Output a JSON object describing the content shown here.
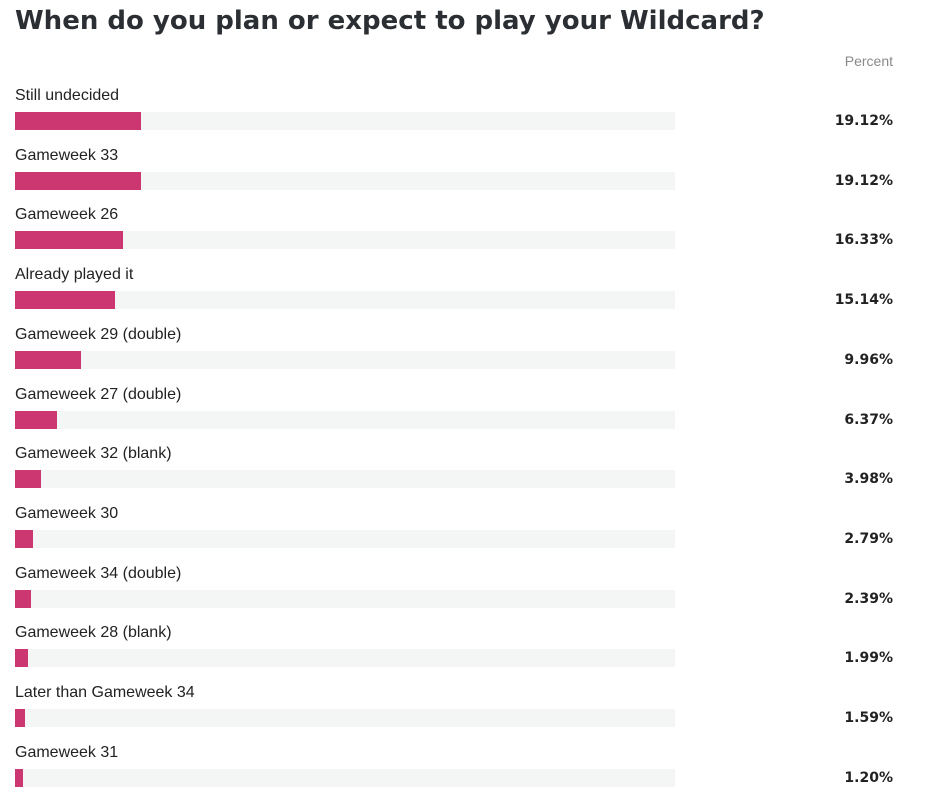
{
  "chart_data": {
    "type": "bar",
    "orientation": "horizontal",
    "title": "When do you plan or expect to play your Wildcard?",
    "value_header": "Percent",
    "categories": [
      "Still undecided",
      "Gameweek 33",
      "Gameweek 26",
      "Already played it",
      "Gameweek 29 (double)",
      "Gameweek 27 (double)",
      "Gameweek 32 (blank)",
      "Gameweek 30",
      "Gameweek 34 (double)",
      "Gameweek 28 (blank)",
      "Later than Gameweek 34",
      "Gameweek 31"
    ],
    "values": [
      19.12,
      19.12,
      16.33,
      15.14,
      9.96,
      6.37,
      3.98,
      2.79,
      2.39,
      1.99,
      1.59,
      1.2
    ],
    "value_labels": [
      "19.12%",
      "19.12%",
      "16.33%",
      "15.14%",
      "9.96%",
      "6.37%",
      "3.98%",
      "2.79%",
      "2.39%",
      "1.99%",
      "1.59%",
      "1.20%"
    ],
    "xlim": [
      0,
      100
    ],
    "bar_color": "#cc3771",
    "track_color": "#f4f5f5",
    "grid": false
  }
}
